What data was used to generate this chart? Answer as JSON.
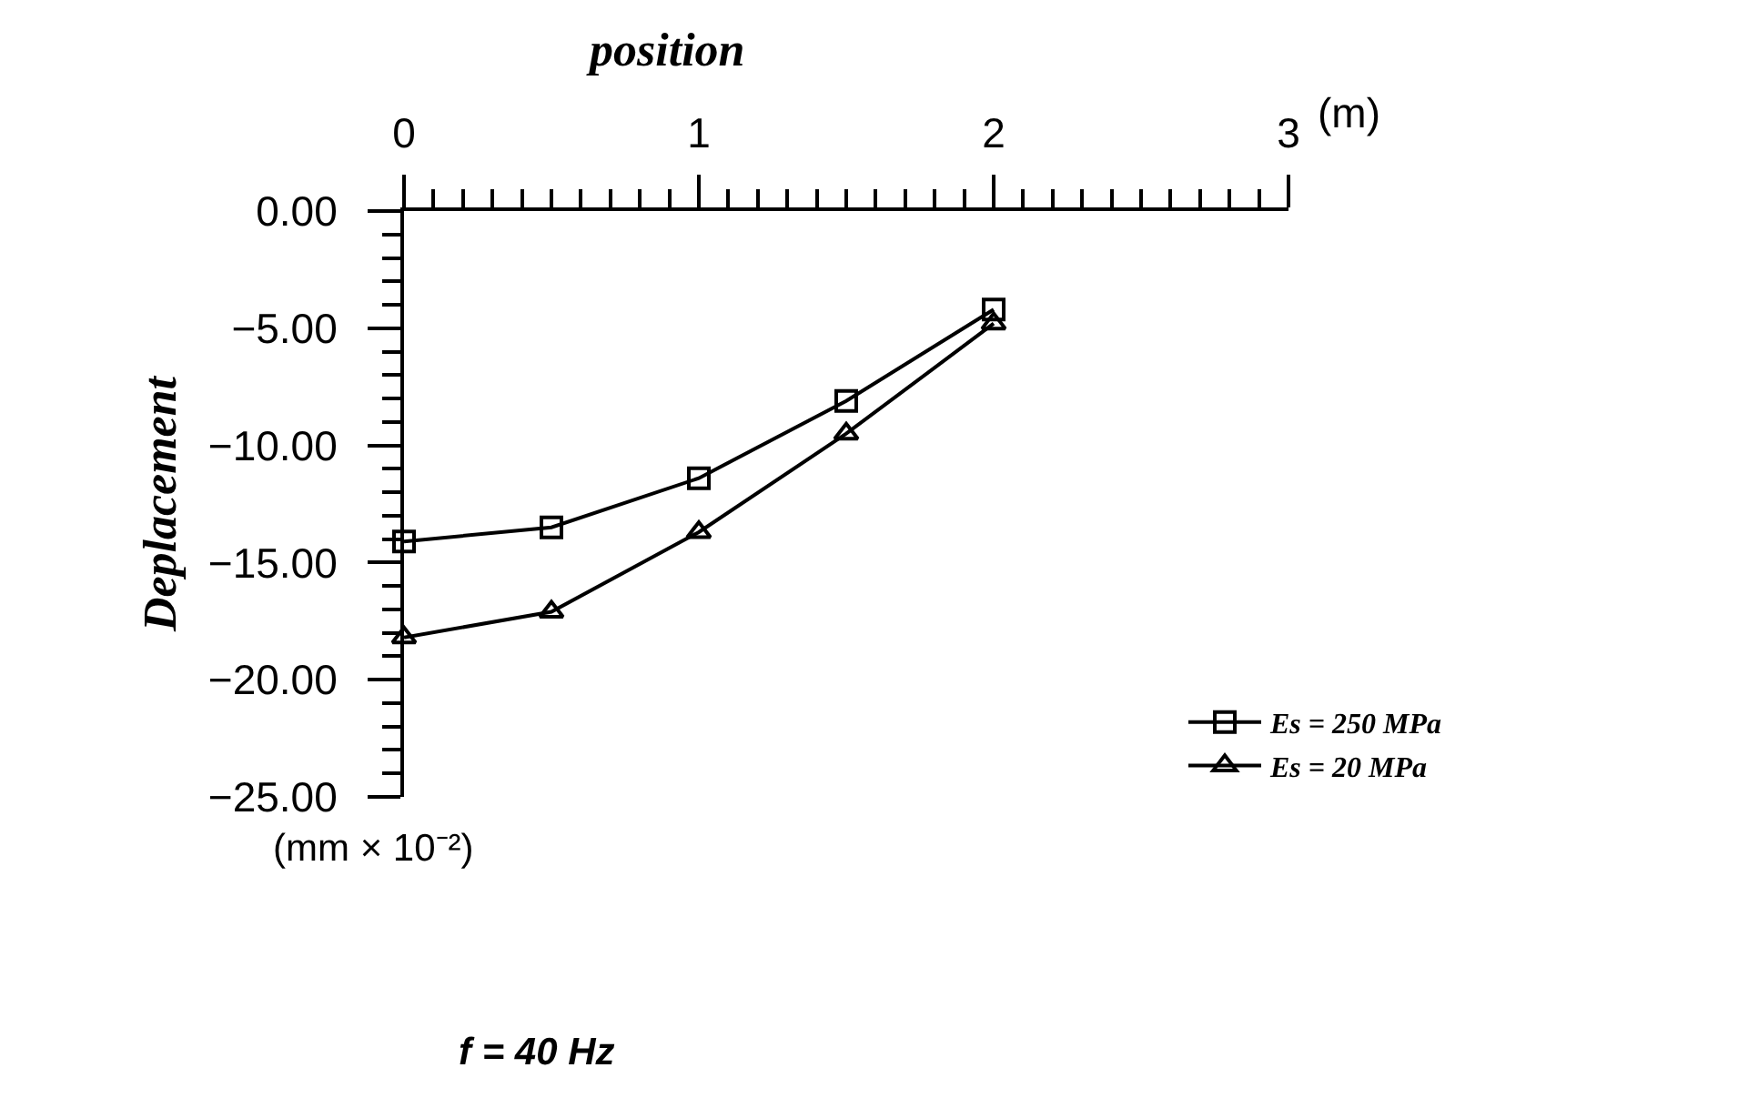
{
  "chart_data": {
    "type": "line",
    "xlabel": "position",
    "ylabel": "Deplacement",
    "x": [
      0,
      0.5,
      1,
      1.5,
      2
    ],
    "series": [
      {
        "name": "Es = 250 MPa",
        "color": "#000000",
        "marker": "square",
        "values": [
          -14.1,
          -13.5,
          -11.4,
          -8.1,
          -4.2
        ]
      },
      {
        "name": "Es = 20 MPa",
        "color": "#000000",
        "marker": "triangle",
        "values": [
          -18.2,
          -17.1,
          -13.7,
          -9.5,
          -4.8
        ]
      }
    ],
    "xlim": [
      0,
      3
    ],
    "xticks": [
      0,
      {
        "value": 0.1,
        "label": null
      },
      {
        "value": 0.2,
        "label": null
      },
      {
        "value": 0.3,
        "label": null
      },
      {
        "value": 0.4,
        "label": null
      },
      {
        "value": 0.5,
        "label": null
      },
      {
        "value": 0.6,
        "label": null
      },
      {
        "value": 0.7,
        "label": null
      },
      {
        "value": 0.8,
        "label": null
      },
      {
        "value": 0.9,
        "label": null
      },
      1,
      {
        "value": 1.1,
        "label": null
      },
      {
        "value": 1.2,
        "label": null
      },
      {
        "value": 1.3,
        "label": null
      },
      {
        "value": 1.4,
        "label": null
      },
      {
        "value": 1.5,
        "label": null
      },
      {
        "value": 1.6,
        "label": null
      },
      {
        "value": 1.7,
        "label": null
      },
      {
        "value": 1.8,
        "label": null
      },
      {
        "value": 1.9,
        "label": null
      },
      2,
      {
        "value": 2.1,
        "label": null
      },
      {
        "value": 2.2,
        "label": null
      },
      {
        "value": 2.3,
        "label": null
      },
      {
        "value": 2.4,
        "label": null
      },
      {
        "value": 2.5,
        "label": null
      },
      {
        "value": 2.6,
        "label": null
      },
      {
        "value": 2.7,
        "label": null
      },
      {
        "value": 2.8,
        "label": null
      },
      {
        "value": 2.9,
        "label": null
      },
      3
    ],
    "ylim": [
      -25,
      0
    ],
    "yticks": [
      {
        "value": 0,
        "label": "0.00"
      },
      {
        "value": -1,
        "label": null
      },
      {
        "value": -2,
        "label": null
      },
      {
        "value": -3,
        "label": null
      },
      {
        "value": -4,
        "label": null
      },
      {
        "value": -5,
        "label": "−5.00"
      },
      {
        "value": -6,
        "label": null
      },
      {
        "value": -7,
        "label": null
      },
      {
        "value": -8,
        "label": null
      },
      {
        "value": -9,
        "label": null
      },
      {
        "value": -10,
        "label": "−10.00"
      },
      {
        "value": -11,
        "label": null
      },
      {
        "value": -12,
        "label": null
      },
      {
        "value": -13,
        "label": null
      },
      {
        "value": -14,
        "label": null
      },
      {
        "value": -15,
        "label": "−15.00"
      },
      {
        "value": -16,
        "label": null
      },
      {
        "value": -17,
        "label": null
      },
      {
        "value": -18,
        "label": null
      },
      {
        "value": -19,
        "label": null
      },
      {
        "value": -20,
        "label": "−20.00"
      },
      {
        "value": -21,
        "label": null
      },
      {
        "value": -22,
        "label": null
      },
      {
        "value": -23,
        "label": null
      },
      {
        "value": -24,
        "label": null
      },
      {
        "value": -25,
        "label": "−25.00"
      }
    ],
    "annotations": [
      "(m)",
      "(mm × 10⁻²)",
      "f = 40 Hz"
    ],
    "legend": "bottom right",
    "grid": false
  }
}
